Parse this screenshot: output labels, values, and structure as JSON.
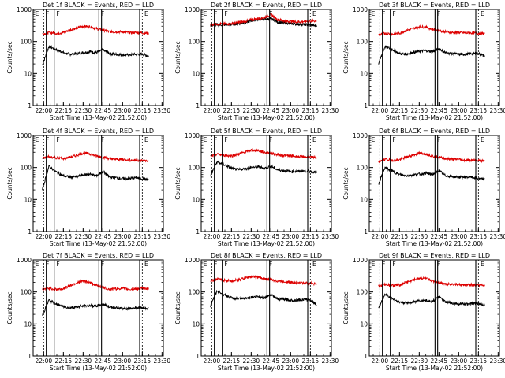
{
  "chart_data": [
    {
      "type": "line",
      "title": "Det 1f BLACK = Events, RED = LLD",
      "ylabel": "Counts/sec",
      "xlabel": "Start Time (13-May-02 21:52:00)",
      "xlim": [
        "21:52",
        "23:31"
      ],
      "ylim": [
        1,
        1000
      ],
      "yscale": "log",
      "x_ticks": [
        "22:00",
        "22:15",
        "22:30",
        "22:45",
        "23:00",
        "23:15",
        "23:30"
      ],
      "y_ticks": [
        "1",
        "10",
        "100",
        "1000"
      ],
      "region_labels": [
        "E",
        "F",
        "F",
        "F",
        "E"
      ],
      "series": [
        {
          "color": "#000000",
          "x": [
            "21:59",
            "22:04",
            "22:10",
            "22:15",
            "22:20",
            "22:25",
            "22:30",
            "22:35",
            "22:40",
            "22:45",
            "22:50",
            "22:55",
            "23:00",
            "23:05",
            "23:10",
            "23:15",
            "23:20"
          ],
          "values": [
            18,
            70,
            55,
            45,
            40,
            42,
            45,
            48,
            45,
            55,
            42,
            40,
            38,
            38,
            40,
            40,
            35
          ]
        },
        {
          "color": "#dd0000",
          "x": [
            "21:59",
            "22:04",
            "22:10",
            "22:15",
            "22:20",
            "22:25",
            "22:30",
            "22:35",
            "22:40",
            "22:45",
            "22:50",
            "22:55",
            "23:00",
            "23:05",
            "23:10",
            "23:15",
            "23:20"
          ],
          "values": [
            170,
            190,
            180,
            190,
            230,
            260,
            300,
            290,
            250,
            230,
            200,
            200,
            200,
            190,
            190,
            185,
            180
          ]
        }
      ]
    },
    {
      "type": "line",
      "title": "Det 2f BLACK = Events, RED = LLD",
      "ylabel": "Counts/sec",
      "xlabel": "Start Time (13-May-02 21:52:00)",
      "xlim": [
        "21:52",
        "23:31"
      ],
      "ylim": [
        1,
        1000
      ],
      "yscale": "log",
      "x_ticks": [
        "22:00",
        "22:15",
        "22:30",
        "22:45",
        "23:00",
        "23:15",
        "23:30"
      ],
      "y_ticks": [
        "1",
        "10",
        "100",
        "1000"
      ],
      "region_labels": [
        "E",
        "F",
        "F",
        "F",
        "E"
      ],
      "series": [
        {
          "color": "#000000",
          "x": [
            "21:59",
            "22:04",
            "22:10",
            "22:15",
            "22:20",
            "22:25",
            "22:30",
            "22:35",
            "22:40",
            "22:45",
            "22:50",
            "22:55",
            "23:00",
            "23:05",
            "23:10",
            "23:15",
            "23:20"
          ],
          "values": [
            320,
            330,
            330,
            340,
            360,
            380,
            440,
            480,
            500,
            520,
            400,
            380,
            360,
            350,
            340,
            330,
            300
          ]
        },
        {
          "color": "#dd0000",
          "x": [
            "21:59",
            "22:04",
            "22:10",
            "22:15",
            "22:20",
            "22:25",
            "22:30",
            "22:35",
            "22:40",
            "22:45",
            "22:50",
            "22:55",
            "23:00",
            "23:05",
            "23:10",
            "23:15",
            "23:20"
          ],
          "values": [
            340,
            350,
            350,
            360,
            390,
            420,
            470,
            520,
            560,
            700,
            480,
            440,
            420,
            410,
            420,
            430,
            440
          ]
        }
      ]
    },
    {
      "type": "line",
      "title": "Det 3f BLACK = Events, RED = LLD",
      "ylabel": "Counts/sec",
      "xlabel": "Start Time (13-May-02 21:52:00)",
      "xlim": [
        "21:52",
        "23:31"
      ],
      "ylim": [
        1,
        1000
      ],
      "yscale": "log",
      "x_ticks": [
        "22:00",
        "22:15",
        "22:30",
        "22:45",
        "23:00",
        "23:15",
        "23:30"
      ],
      "y_ticks": [
        "1",
        "10",
        "100",
        "1000"
      ],
      "region_labels": [
        "E",
        "F",
        "F",
        "F",
        "E"
      ],
      "series": [
        {
          "color": "#000000",
          "x": [
            "21:59",
            "22:04",
            "22:10",
            "22:15",
            "22:20",
            "22:25",
            "22:30",
            "22:35",
            "22:40",
            "22:45",
            "22:50",
            "22:55",
            "23:00",
            "23:05",
            "23:10",
            "23:15",
            "23:20"
          ],
          "values": [
            20,
            70,
            55,
            42,
            40,
            45,
            50,
            52,
            48,
            60,
            45,
            42,
            40,
            40,
            42,
            42,
            35
          ]
        },
        {
          "color": "#dd0000",
          "x": [
            "21:59",
            "22:04",
            "22:10",
            "22:15",
            "22:20",
            "22:25",
            "22:30",
            "22:35",
            "22:40",
            "22:45",
            "22:50",
            "22:55",
            "23:00",
            "23:05",
            "23:10",
            "23:15",
            "23:20"
          ],
          "values": [
            160,
            180,
            170,
            180,
            220,
            250,
            290,
            280,
            240,
            220,
            200,
            190,
            190,
            185,
            185,
            180,
            175
          ]
        }
      ]
    },
    {
      "type": "line",
      "title": "Det 4f BLACK = Events, RED = LLD",
      "ylabel": "Counts/sec",
      "xlabel": "Start Time (13-May-02 21:52:00)",
      "xlim": [
        "21:52",
        "23:31"
      ],
      "ylim": [
        1,
        1000
      ],
      "yscale": "log",
      "x_ticks": [
        "22:00",
        "22:15",
        "22:30",
        "22:45",
        "23:00",
        "23:15",
        "23:30"
      ],
      "y_ticks": [
        "1",
        "10",
        "100",
        "1000"
      ],
      "region_labels": [
        "E",
        "F",
        "F",
        "F",
        "E"
      ],
      "series": [
        {
          "color": "#000000",
          "x": [
            "21:59",
            "22:04",
            "22:10",
            "22:15",
            "22:20",
            "22:25",
            "22:30",
            "22:35",
            "22:40",
            "22:45",
            "22:50",
            "22:55",
            "23:00",
            "23:05",
            "23:10",
            "23:15",
            "23:20"
          ],
          "values": [
            20,
            110,
            70,
            55,
            50,
            52,
            58,
            62,
            55,
            75,
            50,
            48,
            45,
            45,
            48,
            45,
            40
          ]
        },
        {
          "color": "#dd0000",
          "x": [
            "21:59",
            "22:04",
            "22:10",
            "22:15",
            "22:20",
            "22:25",
            "22:30",
            "22:35",
            "22:40",
            "22:45",
            "22:50",
            "22:55",
            "23:00",
            "23:05",
            "23:10",
            "23:15",
            "23:20"
          ],
          "values": [
            190,
            220,
            200,
            190,
            210,
            240,
            280,
            270,
            230,
            210,
            190,
            180,
            180,
            170,
            170,
            165,
            160
          ]
        }
      ]
    },
    {
      "type": "line",
      "title": "Det 5f BLACK = Events, RED = LLD",
      "ylabel": "Counts/sec",
      "xlabel": "Start Time (13-May-02 21:52:00)",
      "xlim": [
        "21:52",
        "23:31"
      ],
      "ylim": [
        1,
        1000
      ],
      "yscale": "log",
      "x_ticks": [
        "22:00",
        "22:15",
        "22:30",
        "22:45",
        "23:00",
        "23:15",
        "23:30"
      ],
      "y_ticks": [
        "1",
        "10",
        "100",
        "1000"
      ],
      "region_labels": [
        "E",
        "F",
        "F",
        "F",
        "E"
      ],
      "series": [
        {
          "color": "#000000",
          "x": [
            "21:59",
            "22:04",
            "22:10",
            "22:15",
            "22:20",
            "22:25",
            "22:30",
            "22:35",
            "22:40",
            "22:45",
            "22:50",
            "22:55",
            "23:00",
            "23:05",
            "23:10",
            "23:15",
            "23:20"
          ],
          "values": [
            55,
            150,
            120,
            95,
            85,
            90,
            100,
            105,
            95,
            110,
            85,
            80,
            75,
            75,
            78,
            75,
            70
          ]
        },
        {
          "color": "#dd0000",
          "x": [
            "21:59",
            "22:04",
            "22:10",
            "22:15",
            "22:20",
            "22:25",
            "22:30",
            "22:35",
            "22:40",
            "22:45",
            "22:50",
            "22:55",
            "23:00",
            "23:05",
            "23:10",
            "23:15",
            "23:20"
          ],
          "values": [
            220,
            260,
            240,
            230,
            260,
            300,
            350,
            340,
            300,
            280,
            250,
            240,
            230,
            220,
            215,
            210,
            205
          ]
        }
      ]
    },
    {
      "type": "line",
      "title": "Det 6f BLACK = Events, RED = LLD",
      "ylabel": "Counts/sec",
      "xlabel": "Start Time (13-May-02 21:52:00)",
      "xlim": [
        "21:52",
        "23:31"
      ],
      "ylim": [
        1,
        1000
      ],
      "yscale": "log",
      "x_ticks": [
        "22:00",
        "22:15",
        "22:30",
        "22:45",
        "23:00",
        "23:15",
        "23:30"
      ],
      "y_ticks": [
        "1",
        "10",
        "100",
        "1000"
      ],
      "region_labels": [
        "E",
        "F",
        "F",
        "F",
        "E"
      ],
      "series": [
        {
          "color": "#000000",
          "x": [
            "21:59",
            "22:04",
            "22:10",
            "22:15",
            "22:20",
            "22:25",
            "22:30",
            "22:35",
            "22:40",
            "22:45",
            "22:50",
            "22:55",
            "23:00",
            "23:05",
            "23:10",
            "23:15",
            "23:20"
          ],
          "values": [
            30,
            100,
            75,
            60,
            55,
            58,
            62,
            66,
            60,
            80,
            55,
            52,
            50,
            50,
            50,
            45,
            42
          ]
        },
        {
          "color": "#dd0000",
          "x": [
            "21:59",
            "22:04",
            "22:10",
            "22:15",
            "22:20",
            "22:25",
            "22:30",
            "22:35",
            "22:40",
            "22:45",
            "22:50",
            "22:55",
            "23:00",
            "23:05",
            "23:10",
            "23:15",
            "23:20"
          ],
          "values": [
            150,
            180,
            170,
            175,
            210,
            240,
            280,
            270,
            230,
            210,
            190,
            180,
            180,
            170,
            170,
            165,
            160
          ]
        }
      ]
    },
    {
      "type": "line",
      "title": "Det 7f BLACK = Events, RED = LLD",
      "ylabel": "Counts/sec",
      "xlabel": "Start Time (13-May-02 21:52:00)",
      "xlim": [
        "21:52",
        "23:31"
      ],
      "ylim": [
        1,
        1000
      ],
      "yscale": "log",
      "x_ticks": [
        "22:00",
        "22:15",
        "22:30",
        "22:45",
        "23:00",
        "23:15",
        "23:30"
      ],
      "y_ticks": [
        "1",
        "10",
        "100",
        "1000"
      ],
      "region_labels": [
        "E",
        "F",
        "F",
        "F",
        "E"
      ],
      "series": [
        {
          "color": "#000000",
          "x": [
            "21:59",
            "22:04",
            "22:10",
            "22:15",
            "22:20",
            "22:25",
            "22:30",
            "22:35",
            "22:40",
            "22:45",
            "22:50",
            "22:55",
            "23:00",
            "23:05",
            "23:10",
            "23:15",
            "23:20"
          ],
          "values": [
            18,
            55,
            42,
            35,
            32,
            34,
            36,
            38,
            36,
            42,
            34,
            32,
            30,
            30,
            32,
            32,
            30
          ]
        },
        {
          "color": "#dd0000",
          "x": [
            "21:59",
            "22:04",
            "22:10",
            "22:15",
            "22:20",
            "22:25",
            "22:30",
            "22:35",
            "22:40",
            "22:45",
            "22:50",
            "22:55",
            "23:00",
            "23:05",
            "23:10",
            "23:15",
            "23:20"
          ],
          "values": [
            120,
            130,
            120,
            125,
            160,
            190,
            220,
            200,
            160,
            140,
            120,
            125,
            130,
            120,
            125,
            130,
            130
          ]
        }
      ]
    },
    {
      "type": "line",
      "title": "Det 8f BLACK = Events, RED = LLD",
      "ylabel": "Counts/sec",
      "xlabel": "Start Time (13-May-02 21:52:00)",
      "xlim": [
        "21:52",
        "23:31"
      ],
      "ylim": [
        1,
        1000
      ],
      "yscale": "log",
      "x_ticks": [
        "22:00",
        "22:15",
        "22:30",
        "22:45",
        "23:00",
        "23:15",
        "23:30"
      ],
      "y_ticks": [
        "1",
        "10",
        "100",
        "1000"
      ],
      "region_labels": [
        "E",
        "F",
        "F",
        "F",
        "E"
      ],
      "series": [
        {
          "color": "#000000",
          "x": [
            "21:59",
            "22:04",
            "22:10",
            "22:15",
            "22:20",
            "22:25",
            "22:30",
            "22:35",
            "22:40",
            "22:45",
            "22:50",
            "22:55",
            "23:00",
            "23:05",
            "23:10",
            "23:15",
            "23:20"
          ],
          "values": [
            35,
            110,
            80,
            65,
            60,
            62,
            68,
            72,
            65,
            85,
            60,
            58,
            55,
            55,
            58,
            55,
            40
          ]
        },
        {
          "color": "#dd0000",
          "x": [
            "21:59",
            "22:04",
            "22:10",
            "22:15",
            "22:20",
            "22:25",
            "22:30",
            "22:35",
            "22:40",
            "22:45",
            "22:50",
            "22:55",
            "23:00",
            "23:05",
            "23:10",
            "23:15",
            "23:20"
          ],
          "values": [
            220,
            250,
            230,
            220,
            240,
            270,
            300,
            290,
            260,
            240,
            220,
            210,
            200,
            195,
            190,
            185,
            180
          ]
        }
      ]
    },
    {
      "type": "line",
      "title": "Det 9f BLACK = Events, RED = LLD",
      "ylabel": "Counts/sec",
      "xlabel": "Start Time (13-May-02 21:52:00)",
      "xlim": [
        "21:52",
        "23:31"
      ],
      "ylim": [
        1,
        1000
      ],
      "yscale": "log",
      "x_ticks": [
        "22:00",
        "22:15",
        "22:30",
        "22:45",
        "23:00",
        "23:15",
        "23:30"
      ],
      "y_ticks": [
        "1",
        "10",
        "100",
        "1000"
      ],
      "region_labels": [
        "E",
        "F",
        "F",
        "F",
        "E"
      ],
      "series": [
        {
          "color": "#000000",
          "x": [
            "21:59",
            "22:04",
            "22:10",
            "22:15",
            "22:20",
            "22:25",
            "22:30",
            "22:35",
            "22:40",
            "22:45",
            "22:50",
            "22:55",
            "23:00",
            "23:05",
            "23:10",
            "23:15",
            "23:20"
          ],
          "values": [
            30,
            85,
            60,
            48,
            45,
            48,
            52,
            55,
            50,
            70,
            48,
            45,
            42,
            42,
            44,
            44,
            38
          ]
        },
        {
          "color": "#dd0000",
          "x": [
            "21:59",
            "22:04",
            "22:10",
            "22:15",
            "22:20",
            "22:25",
            "22:30",
            "22:35",
            "22:40",
            "22:45",
            "22:50",
            "22:55",
            "23:00",
            "23:05",
            "23:10",
            "23:15",
            "23:20"
          ],
          "values": [
            150,
            170,
            160,
            165,
            200,
            230,
            270,
            260,
            220,
            200,
            180,
            175,
            170,
            165,
            165,
            160,
            160
          ]
        }
      ]
    }
  ]
}
